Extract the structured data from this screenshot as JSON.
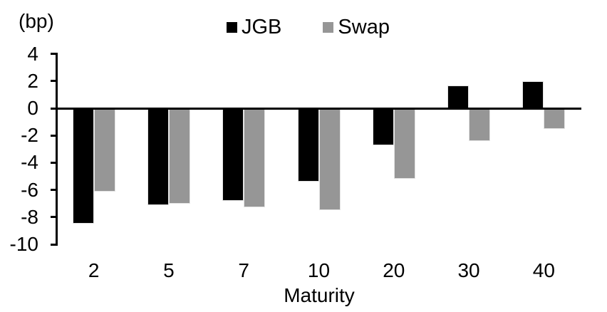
{
  "chart_data": {
    "type": "bar",
    "title": "",
    "unit_label": "(bp)",
    "xlabel": "Maturity",
    "ylabel": "",
    "categories": [
      "2",
      "5",
      "7",
      "10",
      "20",
      "30",
      "40"
    ],
    "series": [
      {
        "name": "JGB",
        "color": "#000000",
        "values": [
          -8.5,
          -7.1,
          -6.8,
          -5.4,
          -2.7,
          1.7,
          2.0
        ]
      },
      {
        "name": "Swap",
        "color": "#969696",
        "values": [
          -6.1,
          -7.0,
          -7.3,
          -7.5,
          -5.2,
          -2.4,
          -1.5
        ]
      }
    ],
    "y_ticks": [
      4,
      2,
      0,
      -2,
      -4,
      -6,
      -8,
      -10
    ],
    "ylim": [
      -10,
      4
    ],
    "grid": false,
    "legend_position": "top-center",
    "colors": {
      "jgb": "#000000",
      "swap": "#969696",
      "axis": "#000000",
      "background": "#ffffff"
    }
  }
}
